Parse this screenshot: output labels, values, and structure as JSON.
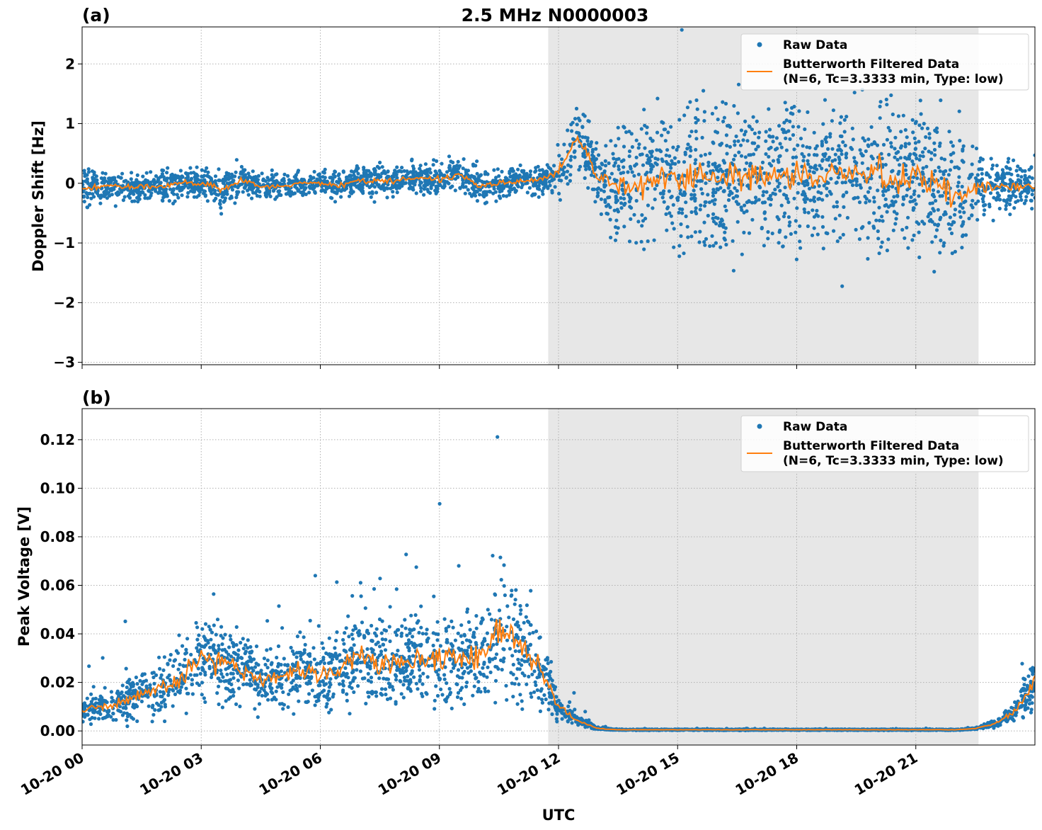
{
  "figure_title": "2.5 MHz N0000003",
  "xlabel": "UTC",
  "chart_data": [
    {
      "type": "scatter",
      "panel_label": "(a)",
      "title": "2.5 MHz N0000003",
      "xlabel": "",
      "ylabel": "Doppler Shift [Hz]",
      "x_units": "hours since 10-20 00 UTC",
      "xlim": [
        0,
        24
      ],
      "ylim": [
        -3.04,
        2.62
      ],
      "xticks": [
        0,
        3,
        6,
        9,
        12,
        15,
        18,
        21
      ],
      "xticklabels": [
        "10-20 00",
        "10-20 03",
        "10-20 06",
        "10-20 09",
        "10-20 12",
        "10-20 15",
        "10-20 18",
        "10-20 21"
      ],
      "yticks": [
        -3,
        -2,
        -1,
        0,
        1,
        2
      ],
      "yticklabels": [
        "−3",
        "−2",
        "−1",
        "0",
        "1",
        "2"
      ],
      "grid": true,
      "shaded_interval": [
        11.74,
        22.58
      ],
      "legend": {
        "placement": "top-right",
        "entries": [
          "Raw Data",
          "Butterworth Filtered Data",
          "(N=6, Tc=3.3333 min, Type: low)"
        ]
      },
      "series": [
        {
          "name": "Raw Data",
          "style": "dots",
          "color": "#1f77b4",
          "x": [
            0,
            0.5,
            1,
            1.5,
            2,
            2.5,
            3,
            3.5,
            4,
            4.5,
            5,
            5.5,
            6,
            6.5,
            7,
            7.5,
            8,
            8.5,
            9,
            9.5,
            10,
            10.5,
            11,
            11.5,
            12,
            12.5,
            13,
            13.5,
            14,
            14.5,
            15,
            15.5,
            16,
            16.5,
            17,
            17.5,
            18,
            18.5,
            19,
            19.5,
            20,
            20.5,
            21,
            21.5,
            22,
            22.5,
            23,
            23.5,
            24
          ],
          "spread": [
            0.22,
            0.18,
            0.18,
            0.18,
            0.2,
            0.18,
            0.2,
            0.22,
            0.2,
            0.18,
            0.15,
            0.15,
            0.15,
            0.18,
            0.18,
            0.18,
            0.18,
            0.2,
            0.22,
            0.2,
            0.22,
            0.18,
            0.15,
            0.18,
            0.3,
            0.45,
            0.45,
            0.7,
            0.8,
            0.85,
            0.9,
            0.95,
            0.95,
            0.95,
            0.95,
            0.9,
            0.9,
            0.9,
            0.95,
            0.95,
            0.95,
            0.9,
            0.9,
            0.95,
            1.0,
            0.45,
            0.35,
            0.3,
            0.3
          ]
        },
        {
          "name": "Butterworth Filtered Data (N=6, Tc=3.3333 min, Type: low)",
          "style": "line",
          "color": "#ff7f0e",
          "x": [
            0,
            0.5,
            1,
            1.5,
            2,
            2.5,
            3,
            3.5,
            4,
            4.5,
            5,
            5.5,
            6,
            6.5,
            7,
            7.5,
            8,
            8.5,
            9,
            9.5,
            10,
            10.5,
            11,
            11.5,
            12,
            12.5,
            13,
            13.5,
            14,
            14.5,
            15,
            15.5,
            16,
            16.5,
            17,
            17.5,
            18,
            18.5,
            19,
            19.5,
            20,
            20.5,
            21,
            21.5,
            22,
            22.5,
            23,
            23.5,
            24
          ],
          "y": [
            -0.1,
            -0.05,
            -0.05,
            -0.05,
            -0.05,
            0,
            0,
            -0.1,
            0.05,
            -0.05,
            -0.05,
            0,
            0,
            -0.05,
            0.05,
            0.05,
            0.05,
            0.1,
            0.05,
            0.15,
            -0.05,
            0,
            0.05,
            0.05,
            0.2,
            0.8,
            0.1,
            -0.05,
            -0.05,
            0.1,
            0.05,
            0.2,
            0,
            0.2,
            0.15,
            0.1,
            0.2,
            0.05,
            0.15,
            0.1,
            0.2,
            0,
            0.2,
            0,
            -0.2,
            -0.1,
            -0.05,
            -0.05,
            -0.05
          ]
        }
      ]
    },
    {
      "type": "scatter",
      "panel_label": "(b)",
      "xlabel": "UTC",
      "ylabel": "Peak Voltage [V]",
      "x_units": "hours since 10-20 00 UTC",
      "xlim": [
        0,
        24
      ],
      "ylim": [
        -0.0058,
        0.1328
      ],
      "xticks": [
        0,
        3,
        6,
        9,
        12,
        15,
        18,
        21
      ],
      "xticklabels": [
        "10-20 00",
        "10-20 03",
        "10-20 06",
        "10-20 09",
        "10-20 12",
        "10-20 15",
        "10-20 18",
        "10-20 21"
      ],
      "yticks": [
        0,
        0.02,
        0.04,
        0.06,
        0.08,
        0.1,
        0.12
      ],
      "yticklabels": [
        "0.00",
        "0.02",
        "0.04",
        "0.06",
        "0.08",
        "0.10",
        "0.12"
      ],
      "grid": true,
      "shaded_interval": [
        11.74,
        22.58
      ],
      "legend": {
        "placement": "top-right",
        "entries": [
          "Raw Data",
          "Butterworth Filtered Data",
          "(N=6, Tc=3.3333 min, Type: low)"
        ]
      },
      "series": [
        {
          "name": "Raw Data",
          "style": "dots",
          "color": "#1f77b4",
          "x": [
            0,
            0.5,
            1,
            1.5,
            2,
            2.5,
            3,
            3.5,
            4,
            4.5,
            5,
            5.5,
            6,
            6.5,
            7,
            7.5,
            8,
            8.5,
            9,
            9.5,
            10,
            10.5,
            11,
            11.5,
            12,
            12.5,
            13,
            13.5,
            14,
            14.5,
            15,
            15.5,
            16,
            16.5,
            17,
            17.5,
            18,
            18.5,
            19,
            19.5,
            20,
            20.5,
            21,
            21.5,
            22,
            22.5,
            23,
            23.5,
            24
          ],
          "spread": [
            0.005,
            0.006,
            0.008,
            0.009,
            0.011,
            0.013,
            0.018,
            0.017,
            0.014,
            0.012,
            0.013,
            0.014,
            0.013,
            0.014,
            0.019,
            0.016,
            0.016,
            0.017,
            0.017,
            0.017,
            0.018,
            0.024,
            0.021,
            0.017,
            0.006,
            0.002,
            0.0004,
            0.0002,
            0.0002,
            0.0002,
            0.0002,
            0.0002,
            0.0002,
            0.0002,
            0.0002,
            0.0002,
            0.0002,
            0.0002,
            0.0002,
            0.0002,
            0.0002,
            0.0002,
            0.0002,
            0.0002,
            0.0002,
            0.0004,
            0.0015,
            0.004,
            0.01
          ]
        },
        {
          "name": "Butterworth Filtered Data (N=6, Tc=3.3333 min, Type: low)",
          "style": "line",
          "color": "#ff7f0e",
          "x": [
            0,
            0.5,
            1,
            1.5,
            2,
            2.5,
            3,
            3.5,
            4,
            4.5,
            5,
            5.5,
            6,
            6.5,
            7,
            7.5,
            8,
            8.5,
            9,
            9.5,
            10,
            10.5,
            11,
            11.5,
            12,
            12.5,
            13,
            13.5,
            14,
            14.5,
            15,
            15.5,
            16,
            16.5,
            17,
            17.5,
            18,
            18.5,
            19,
            19.5,
            20,
            20.5,
            21,
            21.5,
            22,
            22.5,
            23,
            23.5,
            24
          ],
          "y": [
            0.008,
            0.01,
            0.012,
            0.015,
            0.018,
            0.022,
            0.03,
            0.028,
            0.025,
            0.02,
            0.022,
            0.025,
            0.022,
            0.025,
            0.032,
            0.028,
            0.028,
            0.03,
            0.03,
            0.03,
            0.03,
            0.04,
            0.035,
            0.028,
            0.01,
            0.004,
            0.001,
            0.0005,
            0.0005,
            0.0005,
            0.0005,
            0.0005,
            0.0005,
            0.0005,
            0.0005,
            0.0005,
            0.0005,
            0.0005,
            0.0005,
            0.0005,
            0.0005,
            0.0005,
            0.0005,
            0.0005,
            0.0005,
            0.001,
            0.003,
            0.008,
            0.02
          ]
        }
      ]
    }
  ]
}
